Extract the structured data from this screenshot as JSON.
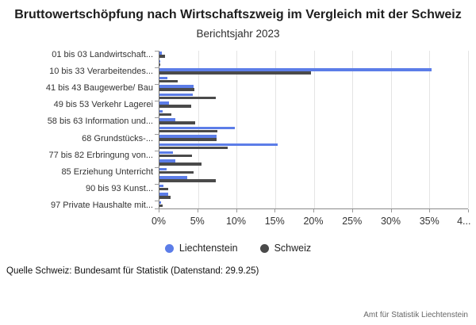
{
  "title": "Bruttowertschöpfung nach Wirtschaftszweig im Vergleich mit der Schweiz",
  "subtitle": "Berichtsjahr 2023",
  "source_note": "Quelle Schweiz: Bundesamt für Statistik (Datenstand: 29.9.25)",
  "credit": "Amt für Statistik Liechtenstein",
  "colors": {
    "liechtenstein": "#5C7DE8",
    "schweiz": "#4A4A4A",
    "grid": "#E4E4E4",
    "axis": "#8A8A8A"
  },
  "legend": [
    {
      "label": "Liechtenstein",
      "color": "#5C7DE8"
    },
    {
      "label": "Schweiz",
      "color": "#4A4A4A"
    }
  ],
  "chart_data": {
    "type": "bar",
    "orientation": "horizontal",
    "title": "Bruttowertschöpfung nach Wirtschaftszweig im Vergleich mit der Schweiz",
    "subtitle": "Berichtsjahr 2023",
    "xlabel": "",
    "ylabel": "",
    "xlim": [
      0,
      40
    ],
    "grid": true,
    "legend_position": "bottom",
    "x_ticks": [
      {
        "value": 0,
        "label": "0%"
      },
      {
        "value": 5,
        "label": "5%"
      },
      {
        "value": 10,
        "label": "10%"
      },
      {
        "value": 15,
        "label": "15%"
      },
      {
        "value": 20,
        "label": "20%"
      },
      {
        "value": 25,
        "label": "25%"
      },
      {
        "value": 30,
        "label": "30%"
      },
      {
        "value": 35,
        "label": "35%"
      },
      {
        "value": 40,
        "label": "4..."
      }
    ],
    "categories": [
      "01 bis 03 Landwirtschaft...",
      "",
      "10 bis 33 Verarbeitendes...",
      "",
      "41 bis 43 Baugewerbe/ Bau",
      "",
      "49 bis 53 Verkehr Lagerei",
      "",
      "58 bis 63 Information und...",
      "",
      "68 Grundstücks-...",
      "",
      "77 bis 82 Erbringung von...",
      "",
      "85 Erziehung Unterricht",
      "",
      "90 bis 93 Kunst...",
      "",
      "97 Private Haushalte mit..."
    ],
    "series": [
      {
        "name": "Liechtenstein",
        "color": "#5C7DE8",
        "values": [
          0.3,
          0.1,
          35.3,
          1.0,
          4.4,
          4.3,
          1.2,
          0.4,
          2.1,
          9.8,
          7.4,
          15.3,
          1.7,
          2.1,
          0.9,
          3.6,
          0.5,
          1.1,
          0.2
        ]
      },
      {
        "name": "Schweiz",
        "color": "#4A4A4A",
        "values": [
          0.7,
          0.1,
          19.6,
          2.4,
          4.5,
          7.3,
          4.1,
          1.5,
          4.6,
          7.5,
          7.4,
          8.8,
          4.2,
          5.5,
          4.4,
          7.3,
          1.1,
          1.4,
          0.4
        ]
      }
    ]
  }
}
